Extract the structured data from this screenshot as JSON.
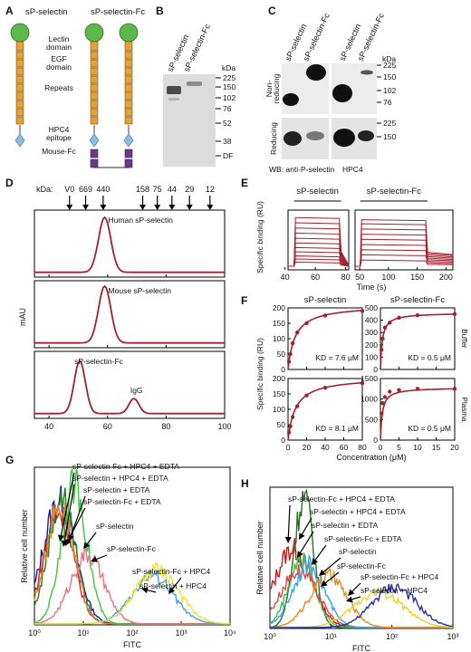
{
  "panels": {
    "A": {
      "letter": "A",
      "headers": [
        "sP-selectin",
        "sP-selectin-Fc"
      ],
      "domains": [
        "Lectin",
        "domain",
        "EGF",
        "domain",
        "Repeats",
        "HPC4",
        "epitope",
        "Mouse-Fc"
      ],
      "colors": {
        "lectin": "#5cb84a",
        "repeat": "#e2a336",
        "epitope": "#8bbde0",
        "fc": "#6a3a86"
      }
    },
    "B": {
      "letter": "B",
      "lanes": [
        "sP-selectin",
        "sP-selectin-Fc"
      ],
      "kda_header": "kDa",
      "markers": [
        "225",
        "150",
        "102",
        "76",
        "52",
        "38",
        "DF"
      ]
    },
    "C": {
      "letter": "C",
      "lanes": [
        "sP-selectin",
        "sP-selectin-Fc",
        "sP-selectin",
        "sP-selectin-Fc"
      ],
      "kda_header": "kDa",
      "markers_top": [
        "225",
        "150",
        "102",
        "76"
      ],
      "markers_bottom": [
        "225",
        "150"
      ],
      "row_labels": [
        "Non-",
        "reducing",
        "Reducing"
      ],
      "wb_label": "WB: anti-P-selectin",
      "hpc4_label": "HPC4"
    }
  },
  "chart_data": [
    {
      "panel": "D",
      "type": "line",
      "kda_label": "kDa:",
      "standards": [
        "V0",
        "669",
        "440",
        "158",
        "75",
        "44",
        "29",
        "12"
      ],
      "standard_x": [
        47,
        52.5,
        58.5,
        72,
        77,
        82,
        88,
        95
      ],
      "xlim": [
        35,
        100
      ],
      "xticks": [
        "40",
        "60",
        "80",
        "100"
      ],
      "ylabel": "mAU",
      "traces": [
        {
          "label": "Human sP-selectin",
          "peaks": [
            {
              "x": 59,
              "height": 0.92,
              "sigma": 2.1
            }
          ]
        },
        {
          "label": "Mouse sP-selectin",
          "peaks": [
            {
              "x": 59,
              "height": 0.95,
              "sigma": 2.1
            }
          ]
        },
        {
          "label": "sP-selectin-Fc",
          "extra_label": "IgG",
          "peaks": [
            {
              "x": 50.5,
              "height": 0.88,
              "sigma": 1.9
            },
            {
              "x": 69,
              "height": 0.25,
              "sigma": 1.7
            }
          ]
        }
      ]
    },
    {
      "panel": "E",
      "type": "line",
      "ylabel": "Specific binding (RU)",
      "xlabel": "Time (s)",
      "subplots": [
        {
          "title": "sP-selectin",
          "xlim": [
            42,
            82
          ],
          "xticks": [
            "40",
            "60",
            "80"
          ],
          "inject": [
            46,
            77
          ],
          "levels": [
            40,
            70,
            100,
            140,
            180,
            225,
            270,
            320,
            370,
            420,
            470
          ]
        },
        {
          "title": "sP-selectin-Fc",
          "xlim": [
            42,
            212
          ],
          "xticks": [
            "50",
            "100",
            "150",
            "200"
          ],
          "inject": [
            51,
            168
          ],
          "levels": [
            60,
            110,
            160,
            210,
            260,
            310,
            360,
            410,
            450
          ]
        }
      ]
    },
    {
      "panel": "F",
      "type": "scatter",
      "ylabel": "Specific binding (RU)",
      "xlabel": "Concentration (μM)",
      "row_labels": [
        "Buffer",
        "Plasma"
      ],
      "subplots": [
        {
          "title": "sP-selectin",
          "xlim": [
            0,
            80
          ],
          "ylim": [
            0,
            200
          ],
          "xticks": [
            "0",
            "20",
            "40",
            "60",
            "80"
          ],
          "yticks": [
            "0",
            "50",
            "100",
            "150",
            "200"
          ],
          "kd_text": "KD = 7.6 μM",
          "Kd": 7.6,
          "Bmax": 210,
          "points": [
            [
              1,
              25
            ],
            [
              2.5,
              50
            ],
            [
              5,
              85
            ],
            [
              10,
              120
            ],
            [
              20,
              150
            ],
            [
              40,
              175
            ],
            [
              80,
              190
            ]
          ]
        },
        {
          "title": "sP-selectin-Fc",
          "xlim": [
            0,
            20
          ],
          "ylim": [
            0,
            500
          ],
          "xticks": [
            "0",
            "5",
            "10",
            "15",
            "20"
          ],
          "yticks": [
            "0",
            "100",
            "200",
            "300",
            "400",
            "500"
          ],
          "kd_text": "KD = 0.5 μM",
          "Kd": 0.5,
          "Bmax": 460,
          "points": [
            [
              0.3,
              160
            ],
            [
              0.6,
              250
            ],
            [
              1.2,
              340
            ],
            [
              2.5,
              380
            ],
            [
              5,
              420
            ],
            [
              10,
              440
            ],
            [
              20,
              450
            ]
          ]
        },
        {
          "title": "",
          "xlim": [
            0,
            80
          ],
          "ylim": [
            0,
            200
          ],
          "xticks": [
            "0",
            "20",
            "40",
            "60",
            "80"
          ],
          "yticks": [
            "0",
            "50",
            "100",
            "150",
            "200"
          ],
          "kd_text": "KD = 8.1 μM",
          "Kd": 8.1,
          "Bmax": 205,
          "points": [
            [
              1,
              25
            ],
            [
              2.5,
              45
            ],
            [
              5,
              75
            ],
            [
              10,
              110
            ],
            [
              20,
              145
            ],
            [
              40,
              170
            ],
            [
              80,
              185
            ]
          ]
        },
        {
          "title": "",
          "xlim": [
            0,
            20
          ],
          "ylim": [
            0,
            1500
          ],
          "xticks": [
            "0",
            "5",
            "10",
            "15",
            "20"
          ],
          "yticks": [
            "0",
            "500",
            "1000",
            "1500"
          ],
          "kd_text": "KD = 0.5 μM",
          "Kd": 0.5,
          "Bmax": 1280,
          "points": [
            [
              0.3,
              650
            ],
            [
              0.6,
              900
            ],
            [
              1.2,
              1050
            ],
            [
              2.5,
              1180
            ],
            [
              5,
              1220
            ],
            [
              10,
              1250
            ],
            [
              20,
              1250
            ]
          ]
        }
      ]
    },
    {
      "panel": "G",
      "type": "line",
      "xscale": "log",
      "xlim": [
        1,
        10000
      ],
      "xlabel": "FITC",
      "ylabel": "Relative cell number",
      "xticks": [
        "10⁰",
        "10¹",
        "10²",
        "10³",
        "10⁴"
      ],
      "series": [
        {
          "name": "sP-selectin-Fc + HPC4 + EDTA",
          "color": "#1a1aa8",
          "center": 3.2,
          "width": 0.33,
          "height": 0.8
        },
        {
          "name": "sP-selectin + HPC4 + EDTA",
          "color": "#d3262b",
          "center": 3.1,
          "width": 0.3,
          "height": 0.74
        },
        {
          "name": "sP-selectin + EDTA",
          "color": "#2a7a2a",
          "center": 3.6,
          "width": 0.28,
          "height": 0.82
        },
        {
          "name": "sP-selectin-Fc + EDTA",
          "color": "#e08a28",
          "center": 3.3,
          "width": 0.29,
          "height": 0.78
        },
        {
          "name": "sP-selectin",
          "color": "#3ec63e",
          "center": 6.5,
          "width": 0.26,
          "height": 0.92
        },
        {
          "name": "sP-selectin-Fc",
          "color": "#ee7080",
          "center": 12,
          "width": 0.34,
          "height": 0.45
        },
        {
          "name": "sP-selectin-Fc + HPC4",
          "color": "#4aa0dc",
          "center": 260,
          "width": 0.42,
          "height": 0.32
        },
        {
          "name": "sP-selectin + HPC4",
          "color": "#eee13a",
          "center": 320,
          "width": 0.44,
          "height": 0.36
        }
      ]
    },
    {
      "panel": "H",
      "type": "line",
      "xscale": "log",
      "xlim": [
        1,
        1000
      ],
      "xlabel": "FITC",
      "ylabel": "Relative cell number",
      "xticks": [
        "10⁰",
        "10¹",
        "10²",
        "10³"
      ],
      "series": [
        {
          "name": "sP-selectin-Fc + HPC4 + EDTA",
          "color": "#b8221e",
          "center": 2.4,
          "width": 0.3,
          "height": 0.58
        },
        {
          "name": "sP-selectin + HPC4 + EDTA",
          "color": "#2e6e2a",
          "center": 3.6,
          "width": 0.16,
          "height": 0.96
        },
        {
          "name": "sP-selectin + EDTA",
          "color": "#4cbb48",
          "center": 3.3,
          "width": 0.22,
          "height": 0.5
        },
        {
          "name": "sP-selectin-Fc + EDTA",
          "color": "#e04848",
          "center": 3.0,
          "width": 0.3,
          "height": 0.42
        },
        {
          "name": "sP-selectin",
          "color": "#33a7e0",
          "center": 4.3,
          "width": 0.26,
          "height": 0.46
        },
        {
          "name": "sP-selectin-Fc",
          "color": "#f08a1e",
          "center": 9,
          "width": 0.3,
          "height": 0.38
        },
        {
          "name": "sP-selectin-Fc + HPC4",
          "color": "#e8d22c",
          "center": 60,
          "width": 0.4,
          "height": 0.26
        },
        {
          "name": "sP-selectin + HPC4",
          "color": "#2233aa",
          "center": 110,
          "width": 0.36,
          "height": 0.3
        }
      ]
    }
  ]
}
